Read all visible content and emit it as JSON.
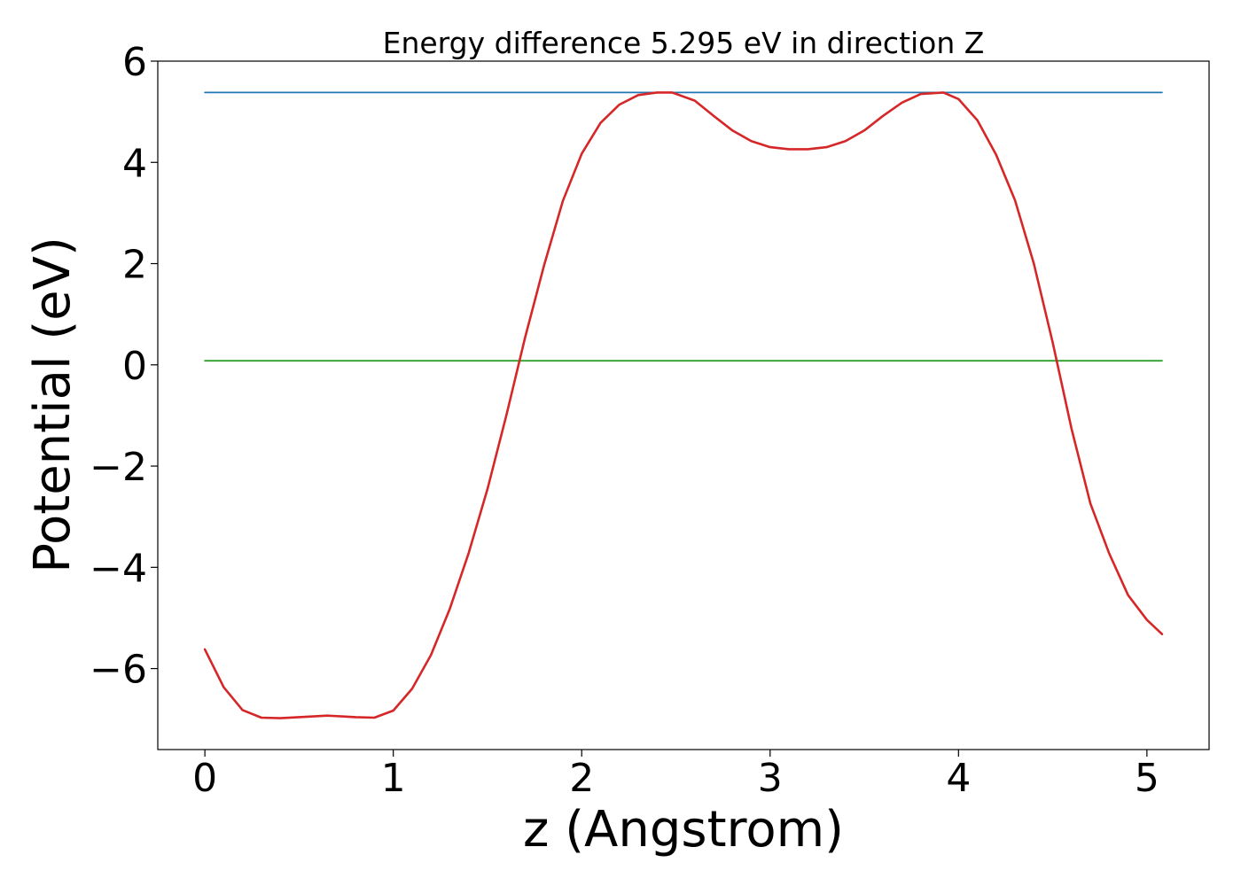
{
  "chart_data": {
    "type": "line",
    "title": "Energy difference 5.295 eV in direction Z",
    "xlabel": "z (Angstrom)",
    "ylabel": "Potential (eV)",
    "xlim": [
      -0.25,
      5.33
    ],
    "ylim": [
      -7.6,
      6.0
    ],
    "xticks": [
      0,
      1,
      2,
      3,
      4,
      5
    ],
    "xtick_labels": [
      "0",
      "1",
      "2",
      "3",
      "4",
      "5"
    ],
    "yticks": [
      -6,
      -4,
      -2,
      0,
      2,
      4,
      6
    ],
    "ytick_labels": [
      "−6",
      "−4",
      "−2",
      "0",
      "2",
      "4",
      "6"
    ],
    "grid": false,
    "legend": "none",
    "series": [
      {
        "color": "#1f77b4",
        "x": [
          0,
          5.08
        ],
        "y": [
          5.38,
          5.38
        ]
      },
      {
        "color": "#2ca02c",
        "x": [
          0,
          5.08
        ],
        "y": [
          0.08,
          0.08
        ]
      },
      {
        "color": "#d62728",
        "x": [
          0,
          0.1,
          0.2,
          0.3,
          0.4,
          0.5,
          0.65,
          0.8,
          0.9,
          1.0,
          1.1,
          1.2,
          1.3,
          1.4,
          1.5,
          1.6,
          1.7,
          1.8,
          1.9,
          2.0,
          2.1,
          2.2,
          2.3,
          2.4,
          2.48,
          2.6,
          2.7,
          2.8,
          2.9,
          3.0,
          3.1,
          3.2,
          3.3,
          3.4,
          3.5,
          3.6,
          3.7,
          3.8,
          3.92,
          4.0,
          4.1,
          4.2,
          4.3,
          4.4,
          4.5,
          4.6,
          4.7,
          4.8,
          4.9,
          5.0,
          5.08
        ],
        "y": [
          -5.62,
          -6.37,
          -6.82,
          -6.97,
          -6.98,
          -6.96,
          -6.93,
          -6.96,
          -6.97,
          -6.83,
          -6.4,
          -5.73,
          -4.82,
          -3.72,
          -2.45,
          -1.0,
          0.55,
          1.96,
          3.24,
          4.17,
          4.78,
          5.14,
          5.33,
          5.38,
          5.38,
          5.22,
          4.92,
          4.63,
          4.42,
          4.3,
          4.26,
          4.26,
          4.3,
          4.42,
          4.63,
          4.92,
          5.18,
          5.35,
          5.38,
          5.25,
          4.83,
          4.15,
          3.25,
          2.0,
          0.44,
          -1.26,
          -2.74,
          -3.73,
          -4.55,
          -5.04,
          -5.32
        ]
      }
    ]
  }
}
